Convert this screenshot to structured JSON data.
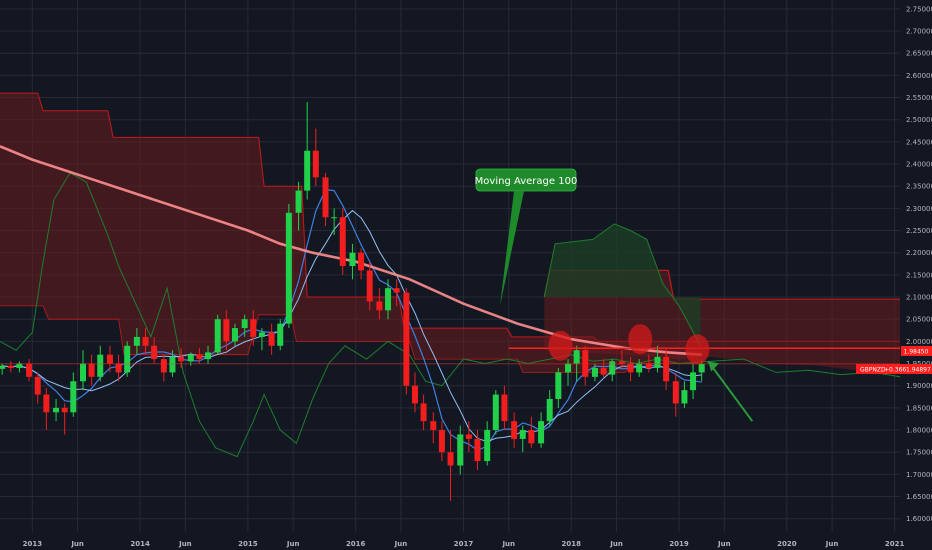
{
  "chart_data": {
    "type": "candlestick",
    "symbol_tag": "GBPNZD",
    "change": "+0.366",
    "price_label": "1.94897",
    "level_label": "1.98450",
    "level_value": 1.9845,
    "annotation": "Moving Average 100",
    "ylim": [
      1.57,
      2.77
    ],
    "yticks": [
      1.6,
      1.65,
      1.7,
      1.75,
      1.8,
      1.85,
      1.9,
      1.95,
      2.0,
      2.05,
      2.1,
      2.15,
      2.2,
      2.25,
      2.3,
      2.35,
      2.4,
      2.45,
      2.5,
      2.55,
      2.6,
      2.65,
      2.7,
      2.75
    ],
    "ytick_labels": [
      "1.60000",
      "1.65000",
      "1.70000",
      "1.75000",
      "1.80000",
      "1.85000",
      "1.90000",
      "1.95000",
      "2.00000",
      "2.05000",
      "2.10000",
      "2.15000",
      "2.20000",
      "2.25000",
      "2.30000",
      "2.35000",
      "2.40000",
      "2.45000",
      "2.50000",
      "2.55000",
      "2.60000",
      "2.65000",
      "2.70000",
      "2.75000"
    ],
    "xlim": [
      2012.7,
      2021.05
    ],
    "xticks": [
      {
        "label": "2013",
        "x": 2013.0
      },
      {
        "label": "Jun",
        "x": 2013.42
      },
      {
        "label": "2014",
        "x": 2014.0
      },
      {
        "label": "Jun",
        "x": 2014.42
      },
      {
        "label": "2015",
        "x": 2015.0
      },
      {
        "label": "Jun",
        "x": 2015.42
      },
      {
        "label": "2016",
        "x": 2016.0
      },
      {
        "label": "Jun",
        "x": 2016.42
      },
      {
        "label": "2017",
        "x": 2017.0
      },
      {
        "label": "Jun",
        "x": 2017.42
      },
      {
        "label": "2018",
        "x": 2018.0
      },
      {
        "label": "Jun",
        "x": 2018.42
      },
      {
        "label": "2019",
        "x": 2019.0
      },
      {
        "label": "Jun",
        "x": 2019.42
      },
      {
        "label": "2020",
        "x": 2020.0
      },
      {
        "label": "Jun",
        "x": 2020.42
      },
      {
        "label": "2021",
        "x": 2021.0
      }
    ],
    "candles": [
      {
        "x": 2012.72,
        "o": 1.938,
        "h": 1.95,
        "l": 1.925,
        "c": 1.945
      },
      {
        "x": 2012.8,
        "o": 1.945,
        "h": 1.955,
        "l": 1.93,
        "c": 1.94
      },
      {
        "x": 2012.88,
        "o": 1.94,
        "h": 1.955,
        "l": 1.93,
        "c": 1.95
      },
      {
        "x": 2012.97,
        "o": 1.95,
        "h": 1.96,
        "l": 1.91,
        "c": 1.92
      },
      {
        "x": 2013.05,
        "o": 1.92,
        "h": 1.93,
        "l": 1.86,
        "c": 1.88
      },
      {
        "x": 2013.13,
        "o": 1.88,
        "h": 1.895,
        "l": 1.8,
        "c": 1.84
      },
      {
        "x": 2013.22,
        "o": 1.84,
        "h": 1.87,
        "l": 1.82,
        "c": 1.85
      },
      {
        "x": 2013.3,
        "o": 1.85,
        "h": 1.86,
        "l": 1.79,
        "c": 1.84
      },
      {
        "x": 2013.38,
        "o": 1.84,
        "h": 1.93,
        "l": 1.83,
        "c": 1.91
      },
      {
        "x": 2013.47,
        "o": 1.91,
        "h": 1.98,
        "l": 1.89,
        "c": 1.95
      },
      {
        "x": 2013.55,
        "o": 1.95,
        "h": 1.97,
        "l": 1.9,
        "c": 1.92
      },
      {
        "x": 2013.63,
        "o": 1.92,
        "h": 1.99,
        "l": 1.91,
        "c": 1.97
      },
      {
        "x": 2013.72,
        "o": 1.97,
        "h": 1.99,
        "l": 1.93,
        "c": 1.95
      },
      {
        "x": 2013.8,
        "o": 1.95,
        "h": 1.97,
        "l": 1.91,
        "c": 1.93
      },
      {
        "x": 2013.88,
        "o": 1.93,
        "h": 2.0,
        "l": 1.92,
        "c": 1.99
      },
      {
        "x": 2013.97,
        "o": 1.99,
        "h": 2.03,
        "l": 1.97,
        "c": 2.01
      },
      {
        "x": 2014.05,
        "o": 2.01,
        "h": 2.03,
        "l": 1.97,
        "c": 1.99
      },
      {
        "x": 2014.13,
        "o": 1.99,
        "h": 2.01,
        "l": 1.95,
        "c": 1.96
      },
      {
        "x": 2014.22,
        "o": 1.96,
        "h": 1.97,
        "l": 1.91,
        "c": 1.93
      },
      {
        "x": 2014.3,
        "o": 1.93,
        "h": 1.98,
        "l": 1.92,
        "c": 1.965
      },
      {
        "x": 2014.38,
        "o": 1.965,
        "h": 1.985,
        "l": 1.94,
        "c": 1.955
      },
      {
        "x": 2014.47,
        "o": 1.955,
        "h": 1.975,
        "l": 1.945,
        "c": 1.97
      },
      {
        "x": 2014.55,
        "o": 1.97,
        "h": 1.985,
        "l": 1.95,
        "c": 1.96
      },
      {
        "x": 2014.63,
        "o": 1.96,
        "h": 1.99,
        "l": 1.95,
        "c": 1.975
      },
      {
        "x": 2014.72,
        "o": 1.975,
        "h": 2.06,
        "l": 1.97,
        "c": 2.05
      },
      {
        "x": 2014.8,
        "o": 2.05,
        "h": 2.07,
        "l": 1.98,
        "c": 2.0
      },
      {
        "x": 2014.88,
        "o": 2.0,
        "h": 2.04,
        "l": 1.99,
        "c": 2.03
      },
      {
        "x": 2014.97,
        "o": 2.03,
        "h": 2.06,
        "l": 2.01,
        "c": 2.05
      },
      {
        "x": 2015.05,
        "o": 2.05,
        "h": 2.07,
        "l": 1.99,
        "c": 2.01
      },
      {
        "x": 2015.13,
        "o": 2.01,
        "h": 2.03,
        "l": 1.98,
        "c": 2.02
      },
      {
        "x": 2015.22,
        "o": 2.02,
        "h": 2.04,
        "l": 1.97,
        "c": 1.99
      },
      {
        "x": 2015.3,
        "o": 1.99,
        "h": 2.05,
        "l": 1.98,
        "c": 2.04
      },
      {
        "x": 2015.38,
        "o": 2.04,
        "h": 2.31,
        "l": 2.03,
        "c": 2.29
      },
      {
        "x": 2015.47,
        "o": 2.29,
        "h": 2.36,
        "l": 2.25,
        "c": 2.34
      },
      {
        "x": 2015.55,
        "o": 2.34,
        "h": 2.54,
        "l": 2.32,
        "c": 2.43
      },
      {
        "x": 2015.63,
        "o": 2.43,
        "h": 2.48,
        "l": 2.35,
        "c": 2.37
      },
      {
        "x": 2015.72,
        "o": 2.37,
        "h": 2.38,
        "l": 2.26,
        "c": 2.28
      },
      {
        "x": 2015.8,
        "o": 2.28,
        "h": 2.3,
        "l": 2.24,
        "c": 2.28
      },
      {
        "x": 2015.88,
        "o": 2.28,
        "h": 2.3,
        "l": 2.15,
        "c": 2.17
      },
      {
        "x": 2015.97,
        "o": 2.17,
        "h": 2.22,
        "l": 2.14,
        "c": 2.2
      },
      {
        "x": 2016.05,
        "o": 2.2,
        "h": 2.21,
        "l": 2.14,
        "c": 2.16
      },
      {
        "x": 2016.13,
        "o": 2.16,
        "h": 2.18,
        "l": 2.07,
        "c": 2.09
      },
      {
        "x": 2016.22,
        "o": 2.09,
        "h": 2.12,
        "l": 2.05,
        "c": 2.07
      },
      {
        "x": 2016.3,
        "o": 2.07,
        "h": 2.14,
        "l": 2.05,
        "c": 2.12
      },
      {
        "x": 2016.38,
        "o": 2.12,
        "h": 2.14,
        "l": 2.08,
        "c": 2.11
      },
      {
        "x": 2016.47,
        "o": 2.11,
        "h": 2.12,
        "l": 1.88,
        "c": 1.9
      },
      {
        "x": 2016.55,
        "o": 1.9,
        "h": 1.93,
        "l": 1.84,
        "c": 1.86
      },
      {
        "x": 2016.63,
        "o": 1.86,
        "h": 1.88,
        "l": 1.8,
        "c": 1.82
      },
      {
        "x": 2016.72,
        "o": 1.82,
        "h": 1.84,
        "l": 1.77,
        "c": 1.8
      },
      {
        "x": 2016.8,
        "o": 1.8,
        "h": 1.82,
        "l": 1.73,
        "c": 1.75
      },
      {
        "x": 2016.88,
        "o": 1.75,
        "h": 1.8,
        "l": 1.64,
        "c": 1.72
      },
      {
        "x": 2016.97,
        "o": 1.72,
        "h": 1.81,
        "l": 1.7,
        "c": 1.79
      },
      {
        "x": 2017.05,
        "o": 1.79,
        "h": 1.82,
        "l": 1.75,
        "c": 1.78
      },
      {
        "x": 2017.13,
        "o": 1.78,
        "h": 1.8,
        "l": 1.71,
        "c": 1.73
      },
      {
        "x": 2017.22,
        "o": 1.73,
        "h": 1.82,
        "l": 1.72,
        "c": 1.8
      },
      {
        "x": 2017.3,
        "o": 1.8,
        "h": 1.89,
        "l": 1.79,
        "c": 1.88
      },
      {
        "x": 2017.38,
        "o": 1.88,
        "h": 1.9,
        "l": 1.8,
        "c": 1.82
      },
      {
        "x": 2017.47,
        "o": 1.82,
        "h": 1.84,
        "l": 1.76,
        "c": 1.78
      },
      {
        "x": 2017.55,
        "o": 1.78,
        "h": 1.81,
        "l": 1.75,
        "c": 1.8
      },
      {
        "x": 2017.63,
        "o": 1.8,
        "h": 1.83,
        "l": 1.76,
        "c": 1.77
      },
      {
        "x": 2017.72,
        "o": 1.77,
        "h": 1.84,
        "l": 1.76,
        "c": 1.82
      },
      {
        "x": 2017.8,
        "o": 1.82,
        "h": 1.89,
        "l": 1.81,
        "c": 1.87
      },
      {
        "x": 2017.88,
        "o": 1.87,
        "h": 1.94,
        "l": 1.85,
        "c": 1.93
      },
      {
        "x": 2017.97,
        "o": 1.93,
        "h": 1.96,
        "l": 1.9,
        "c": 1.95
      },
      {
        "x": 2018.05,
        "o": 1.95,
        "h": 1.99,
        "l": 1.91,
        "c": 1.98
      },
      {
        "x": 2018.13,
        "o": 1.98,
        "h": 1.99,
        "l": 1.9,
        "c": 1.92
      },
      {
        "x": 2018.22,
        "o": 1.92,
        "h": 1.95,
        "l": 1.91,
        "c": 1.94
      },
      {
        "x": 2018.3,
        "o": 1.94,
        "h": 1.96,
        "l": 1.92,
        "c": 1.925
      },
      {
        "x": 2018.38,
        "o": 1.925,
        "h": 1.96,
        "l": 1.91,
        "c": 1.955
      },
      {
        "x": 2018.47,
        "o": 1.955,
        "h": 1.98,
        "l": 1.94,
        "c": 1.95
      },
      {
        "x": 2018.55,
        "o": 1.95,
        "h": 1.965,
        "l": 1.91,
        "c": 1.93
      },
      {
        "x": 2018.63,
        "o": 1.93,
        "h": 1.96,
        "l": 1.92,
        "c": 1.95
      },
      {
        "x": 2018.72,
        "o": 1.95,
        "h": 1.97,
        "l": 1.93,
        "c": 1.94
      },
      {
        "x": 2018.8,
        "o": 1.94,
        "h": 1.99,
        "l": 1.93,
        "c": 1.965
      },
      {
        "x": 2018.88,
        "o": 1.965,
        "h": 1.985,
        "l": 1.89,
        "c": 1.91
      },
      {
        "x": 2018.97,
        "o": 1.91,
        "h": 1.93,
        "l": 1.83,
        "c": 1.86
      },
      {
        "x": 2019.05,
        "o": 1.86,
        "h": 1.91,
        "l": 1.85,
        "c": 1.89
      },
      {
        "x": 2019.13,
        "o": 1.89,
        "h": 1.95,
        "l": 1.87,
        "c": 1.93
      },
      {
        "x": 2019.21,
        "o": 1.93,
        "h": 1.96,
        "l": 1.91,
        "c": 1.949
      }
    ],
    "moving_average_100": [
      [
        2012.7,
        2.44
      ],
      [
        2013.0,
        2.41
      ],
      [
        2013.5,
        2.37
      ],
      [
        2014.0,
        2.33
      ],
      [
        2014.5,
        2.29
      ],
      [
        2015.0,
        2.25
      ],
      [
        2015.3,
        2.22
      ],
      [
        2015.6,
        2.2
      ],
      [
        2016.0,
        2.18
      ],
      [
        2016.5,
        2.14
      ],
      [
        2017.0,
        2.085
      ],
      [
        2017.5,
        2.04
      ],
      [
        2018.0,
        2.005
      ],
      [
        2018.5,
        1.985
      ],
      [
        2018.9,
        1.975
      ],
      [
        2019.21,
        1.97
      ]
    ],
    "cloud_upper": [
      [
        2012.7,
        2.56
      ],
      [
        2013.05,
        2.56
      ],
      [
        2013.1,
        2.52
      ],
      [
        2013.7,
        2.52
      ],
      [
        2013.75,
        2.46
      ],
      [
        2015.1,
        2.46
      ],
      [
        2015.15,
        2.35
      ],
      [
        2015.5,
        2.35
      ],
      [
        2015.55,
        2.1
      ],
      [
        2016.4,
        2.1
      ],
      [
        2016.45,
        2.03
      ],
      [
        2017.4,
        2.03
      ],
      [
        2017.45,
        2.01
      ],
      [
        2018.2,
        2.01
      ],
      [
        2018.25,
        2.0
      ],
      [
        2019.0,
        2.0
      ],
      [
        2019.05,
        2.0
      ],
      [
        2020.0,
        2.0
      ],
      [
        2021.05,
        2.0
      ]
    ],
    "cloud_lower": [
      [
        2012.7,
        2.08
      ],
      [
        2013.1,
        2.08
      ],
      [
        2013.15,
        2.05
      ],
      [
        2013.8,
        2.05
      ],
      [
        2013.85,
        1.97
      ],
      [
        2015.0,
        1.97
      ],
      [
        2015.1,
        2.06
      ],
      [
        2015.4,
        2.06
      ],
      [
        2015.45,
        2.0
      ],
      [
        2016.5,
        2.0
      ],
      [
        2016.55,
        1.96
      ],
      [
        2017.5,
        1.96
      ],
      [
        2017.55,
        1.93
      ],
      [
        2018.5,
        1.93
      ],
      [
        2018.55,
        1.95
      ],
      [
        2019.21,
        1.95
      ]
    ],
    "future_cloud_upper": [
      [
        2017.75,
        2.1
      ],
      [
        2017.8,
        2.16
      ],
      [
        2018.9,
        2.16
      ],
      [
        2018.95,
        2.095
      ],
      [
        2021.05,
        2.095
      ]
    ],
    "future_cloud_lower": [
      [
        2017.75,
        1.98
      ],
      [
        2018.5,
        1.97
      ],
      [
        2019.0,
        1.96
      ],
      [
        2019.3,
        1.965
      ],
      [
        2019.8,
        1.95
      ],
      [
        2020.3,
        1.945
      ],
      [
        2020.8,
        1.93
      ],
      [
        2021.05,
        1.93
      ]
    ],
    "green_cloud_top": [
      [
        2017.75,
        2.1
      ],
      [
        2017.85,
        2.22
      ],
      [
        2018.2,
        2.23
      ],
      [
        2018.4,
        2.265
      ],
      [
        2018.55,
        2.25
      ],
      [
        2018.7,
        2.23
      ],
      [
        2018.85,
        2.13
      ],
      [
        2019.0,
        2.08
      ],
      [
        2019.2,
        1.99
      ]
    ],
    "colors": {
      "background": "#131722",
      "grid": "#262a36",
      "bull": "#22d14a",
      "bear": "#f21d1d",
      "ma100": "#ff8f8f",
      "cloud_line": "#c21a1a",
      "cloud_fill": "#6b1b1f",
      "green_line": "#1e7d2c",
      "blue_line": "#3f7fe0",
      "light_blue_line": "#8fbff5",
      "callout": "#1e8a2a",
      "level_line": "#ff1e1e"
    }
  }
}
